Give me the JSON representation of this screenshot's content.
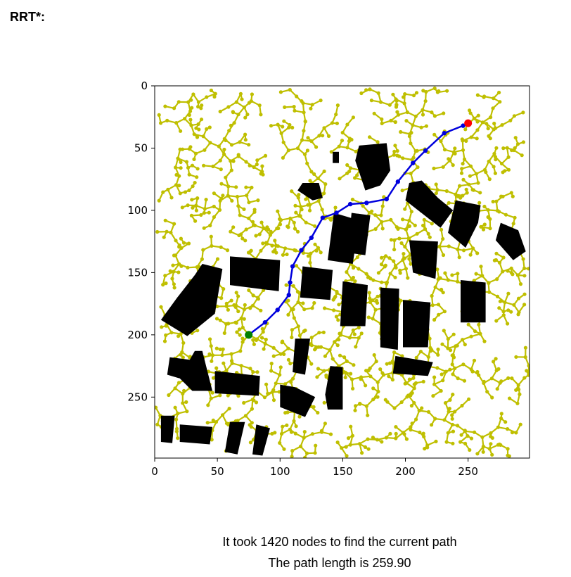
{
  "heading": "RRT*:",
  "caption": {
    "line1": "It took 1420 nodes to find the current path",
    "line2": "The path length is 259.90"
  },
  "colors": {
    "tree": "#bfbf00",
    "path": "#0000dd",
    "start": "#008000",
    "goal": "#ff0000",
    "obstacle": "#000000"
  },
  "chart_data": {
    "type": "scatter",
    "title": "",
    "xlabel": "",
    "ylabel": "",
    "xlim": [
      0,
      299
    ],
    "ylim": [
      299,
      0
    ],
    "grid": false,
    "x_ticks": [
      0,
      50,
      100,
      150,
      200,
      250
    ],
    "y_ticks": [
      0,
      50,
      100,
      150,
      200,
      250
    ],
    "nodes_count": 1420,
    "path_length": 259.9,
    "start": {
      "x": 75,
      "y": 200
    },
    "goal": {
      "x": 250,
      "y": 30
    },
    "path": [
      {
        "x": 75,
        "y": 200
      },
      {
        "x": 88,
        "y": 190
      },
      {
        "x": 98,
        "y": 180
      },
      {
        "x": 107,
        "y": 168
      },
      {
        "x": 108,
        "y": 158
      },
      {
        "x": 110,
        "y": 145
      },
      {
        "x": 117,
        "y": 132
      },
      {
        "x": 125,
        "y": 122
      },
      {
        "x": 134,
        "y": 106
      },
      {
        "x": 145,
        "y": 102
      },
      {
        "x": 156,
        "y": 95
      },
      {
        "x": 169,
        "y": 94
      },
      {
        "x": 185,
        "y": 91
      },
      {
        "x": 194,
        "y": 77
      },
      {
        "x": 206,
        "y": 62
      },
      {
        "x": 216,
        "y": 52
      },
      {
        "x": 231,
        "y": 38
      },
      {
        "x": 246,
        "y": 32
      },
      {
        "x": 250,
        "y": 30
      }
    ],
    "obstacles": [
      [
        [
          38,
          143
        ],
        [
          54,
          147
        ],
        [
          48,
          183
        ],
        [
          26,
          201
        ],
        [
          5,
          188
        ],
        [
          18,
          170
        ],
        [
          32,
          152
        ]
      ],
      [
        [
          60,
          137
        ],
        [
          100,
          140
        ],
        [
          99,
          165
        ],
        [
          60,
          160
        ]
      ],
      [
        [
          118,
          145
        ],
        [
          142,
          148
        ],
        [
          140,
          172
        ],
        [
          116,
          170
        ]
      ],
      [
        [
          143,
          102
        ],
        [
          163,
          108
        ],
        [
          158,
          143
        ],
        [
          138,
          140
        ]
      ],
      [
        [
          157,
          102
        ],
        [
          172,
          104
        ],
        [
          168,
          136
        ],
        [
          154,
          134
        ]
      ],
      [
        [
          163,
          48
        ],
        [
          185,
          46
        ],
        [
          188,
          68
        ],
        [
          180,
          80
        ],
        [
          168,
          84
        ],
        [
          160,
          60
        ]
      ],
      [
        [
          118,
          78
        ],
        [
          131,
          78
        ],
        [
          134,
          90
        ],
        [
          126,
          92
        ],
        [
          114,
          84
        ]
      ],
      [
        [
          142,
          53
        ],
        [
          147,
          53
        ],
        [
          147,
          62
        ],
        [
          142,
          62
        ]
      ],
      [
        [
          203,
          78
        ],
        [
          213,
          76
        ],
        [
          226,
          90
        ],
        [
          238,
          100
        ],
        [
          228,
          114
        ],
        [
          200,
          92
        ]
      ],
      [
        [
          240,
          92
        ],
        [
          260,
          96
        ],
        [
          258,
          110
        ],
        [
          248,
          130
        ],
        [
          234,
          118
        ]
      ],
      [
        [
          276,
          110
        ],
        [
          290,
          116
        ],
        [
          296,
          133
        ],
        [
          286,
          140
        ],
        [
          272,
          124
        ]
      ],
      [
        [
          203,
          124
        ],
        [
          226,
          125
        ],
        [
          224,
          155
        ],
        [
          206,
          150
        ]
      ],
      [
        [
          244,
          156
        ],
        [
          264,
          158
        ],
        [
          264,
          190
        ],
        [
          244,
          190
        ]
      ],
      [
        [
          150,
          157
        ],
        [
          170,
          160
        ],
        [
          168,
          193
        ],
        [
          148,
          193
        ]
      ],
      [
        [
          180,
          162
        ],
        [
          195,
          163
        ],
        [
          194,
          212
        ],
        [
          180,
          210
        ]
      ],
      [
        [
          198,
          172
        ],
        [
          220,
          174
        ],
        [
          218,
          210
        ],
        [
          198,
          210
        ]
      ],
      [
        [
          112,
          203
        ],
        [
          124,
          203
        ],
        [
          120,
          232
        ],
        [
          110,
          230
        ]
      ],
      [
        [
          140,
          225
        ],
        [
          150,
          226
        ],
        [
          150,
          260
        ],
        [
          138,
          260
        ],
        [
          136,
          248
        ]
      ],
      [
        [
          100,
          240
        ],
        [
          112,
          242
        ],
        [
          128,
          250
        ],
        [
          120,
          266
        ],
        [
          100,
          258
        ]
      ],
      [
        [
          48,
          229
        ],
        [
          84,
          233
        ],
        [
          83,
          249
        ],
        [
          48,
          247
        ]
      ],
      [
        [
          32,
          213
        ],
        [
          38,
          213
        ],
        [
          46,
          245
        ],
        [
          30,
          245
        ],
        [
          20,
          235
        ],
        [
          10,
          232
        ],
        [
          12,
          218
        ],
        [
          28,
          220
        ]
      ],
      [
        [
          5,
          265
        ],
        [
          16,
          265
        ],
        [
          14,
          287
        ],
        [
          5,
          286
        ]
      ],
      [
        [
          20,
          272
        ],
        [
          46,
          274
        ],
        [
          44,
          288
        ],
        [
          20,
          286
        ]
      ],
      [
        [
          60,
          270
        ],
        [
          72,
          270
        ],
        [
          66,
          296
        ],
        [
          56,
          294
        ]
      ],
      [
        [
          81,
          272
        ],
        [
          92,
          275
        ],
        [
          86,
          297
        ],
        [
          78,
          296
        ]
      ],
      [
        [
          192,
          217
        ],
        [
          222,
          222
        ],
        [
          218,
          233
        ],
        [
          190,
          231
        ]
      ]
    ]
  }
}
